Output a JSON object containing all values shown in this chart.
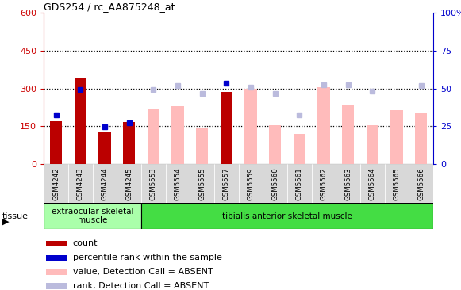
{
  "title": "GDS254 / rc_AA875248_at",
  "samples": [
    "GSM4242",
    "GSM4243",
    "GSM4244",
    "GSM4245",
    "GSM5553",
    "GSM5554",
    "GSM5555",
    "GSM5557",
    "GSM5559",
    "GSM5560",
    "GSM5561",
    "GSM5562",
    "GSM5563",
    "GSM5564",
    "GSM5565",
    "GSM5566"
  ],
  "count_values": [
    170,
    340,
    130,
    165,
    null,
    null,
    null,
    285,
    null,
    null,
    null,
    null,
    null,
    null,
    null,
    null
  ],
  "percentile_values": [
    195,
    295,
    148,
    162,
    null,
    null,
    null,
    320,
    null,
    null,
    null,
    null,
    null,
    null,
    null,
    null
  ],
  "value_absent": [
    null,
    null,
    null,
    null,
    220,
    230,
    145,
    null,
    300,
    155,
    120,
    305,
    235,
    155,
    215,
    200
  ],
  "rank_absent": [
    null,
    null,
    null,
    null,
    295,
    310,
    280,
    null,
    305,
    280,
    195,
    315,
    315,
    290,
    null,
    310
  ],
  "tissue_groups": [
    {
      "label": "extraocular skeletal\nmuscle",
      "start": 0,
      "end": 4,
      "color": "#aaffaa"
    },
    {
      "label": "tibialis anterior skeletal muscle",
      "start": 4,
      "end": 16,
      "color": "#44dd44"
    }
  ],
  "ylim_left": [
    0,
    600
  ],
  "ylim_right": [
    0,
    100
  ],
  "yticks_left": [
    0,
    150,
    300,
    450,
    600
  ],
  "yticks_right": [
    0,
    25,
    50,
    75,
    100
  ],
  "bar_width": 0.5,
  "count_color": "#bb0000",
  "percentile_color": "#0000cc",
  "value_absent_color": "#ffbbbb",
  "rank_absent_color": "#bbbbdd",
  "legend_items": [
    {
      "label": "count",
      "color": "#bb0000"
    },
    {
      "label": "percentile rank within the sample",
      "color": "#0000cc"
    },
    {
      "label": "value, Detection Call = ABSENT",
      "color": "#ffbbbb"
    },
    {
      "label": "rank, Detection Call = ABSENT",
      "color": "#bbbbdd"
    }
  ]
}
